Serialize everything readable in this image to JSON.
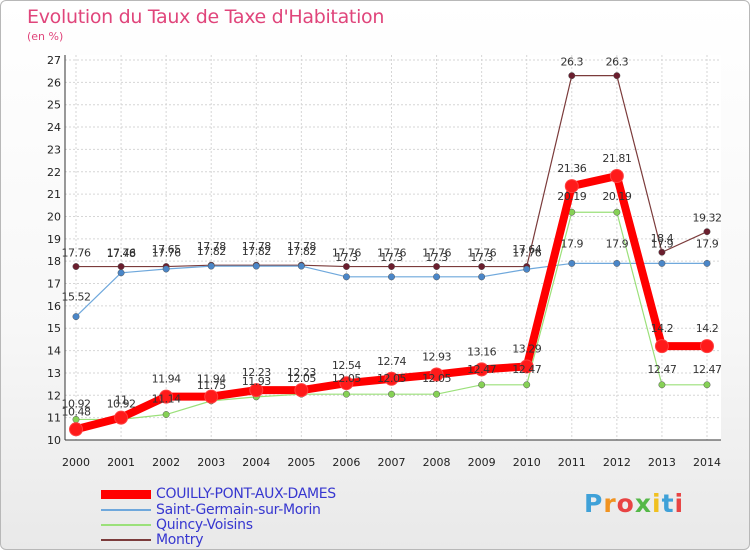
{
  "header": {
    "title": "Evolution du Taux de Taxe d'Habitation",
    "subtitle": "(en %)"
  },
  "logo": {
    "text": "Proxiti",
    "letter_colors": [
      "#3fa1d8",
      "#f19320",
      "#e84343",
      "#55b848",
      "#f0c020",
      "#3fa1d8",
      "#e84343"
    ]
  },
  "chart_data": {
    "type": "line",
    "title": "Evolution du Taux de Taxe d'Habitation",
    "ylabel": "(en %)",
    "xlabel": "",
    "ylim": [
      10,
      27
    ],
    "yticks": [
      "10",
      "11",
      "12",
      "13",
      "14",
      "15",
      "16",
      "17",
      "18",
      "19",
      "20",
      "21",
      "22",
      "23",
      "24",
      "25",
      "26",
      "27"
    ],
    "categories": [
      "2000",
      "2001",
      "2002",
      "2003",
      "2004",
      "2005",
      "2006",
      "2007",
      "2008",
      "2009",
      "2010",
      "2011",
      "2012",
      "2013",
      "2014"
    ],
    "grid": true,
    "legend": "bottom-left",
    "series": [
      {
        "name": "COUILLY-PONT-AUX-DAMES",
        "color": "#ff0000",
        "marker": "#ff1a1a",
        "values": [
          10.48,
          11,
          11.94,
          11.94,
          12.23,
          12.23,
          12.54,
          12.74,
          12.93,
          13.16,
          13.29,
          21.36,
          21.81,
          14.2,
          14.2
        ],
        "labels": [
          "10.48",
          "11",
          "11.94",
          "11.94",
          "12.23",
          "12.23",
          "12.54",
          "12.74",
          "12.93",
          "13.16",
          "13.29",
          "21.36",
          "21.81",
          "14.2",
          "14.2"
        ]
      },
      {
        "name": "Saint-Germain-sur-Morin",
        "color": "#6fa8dc",
        "marker": "#4a86c8",
        "values": [
          15.52,
          17.48,
          17.65,
          17.78,
          17.78,
          17.78,
          17.3,
          17.3,
          17.3,
          17.3,
          17.64,
          17.9,
          17.9,
          17.9,
          17.9
        ],
        "labels": [
          "15.52",
          "17.48",
          "17.65",
          "17.78",
          "17.78",
          "17.78",
          "17.3",
          "17.3",
          "17.3",
          "17.3",
          "17.64",
          "17.9",
          "17.9",
          "17.9",
          "17.9"
        ]
      },
      {
        "name": "Quincy-Voisins",
        "color": "#9be07a",
        "marker": "#86d155",
        "values": [
          10.92,
          10.92,
          11.14,
          11.75,
          11.93,
          12.05,
          12.05,
          12.05,
          12.05,
          12.47,
          12.47,
          20.19,
          20.19,
          12.47,
          12.47
        ],
        "labels": [
          "10.92",
          "10.92",
          "11.14",
          "11.75",
          "11.93",
          "12.05",
          "12.05",
          "12.05",
          "12.05",
          "12.47",
          "12.47",
          "20.19",
          "20.19",
          "12.47",
          "12.47"
        ]
      },
      {
        "name": "Montry",
        "color": "#7b3b3b",
        "marker": "#6b1e2e",
        "values": [
          17.76,
          17.76,
          17.76,
          17.82,
          17.82,
          17.82,
          17.76,
          17.76,
          17.76,
          17.76,
          17.76,
          26.3,
          26.3,
          18.4,
          19.32
        ],
        "labels": [
          "17.76",
          "17.76",
          "17.76",
          "17.82",
          "17.82",
          "17.82",
          "17.76",
          "17.76",
          "17.76",
          "17.76",
          "17.76",
          "26.3",
          "26.3",
          "18.4",
          "19.32"
        ]
      }
    ]
  }
}
